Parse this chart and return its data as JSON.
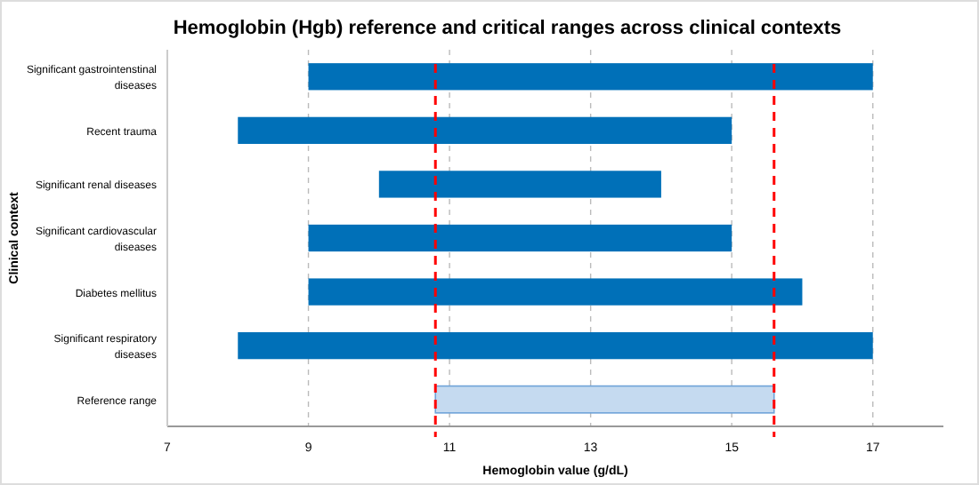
{
  "chart_data": {
    "type": "bar",
    "orientation": "horizontal",
    "title": "Hemoglobin (Hgb) reference and critical ranges across clinical contexts",
    "xlabel": "Hemoglobin value (g/dL)",
    "ylabel": "Clinical context",
    "categories": [
      "Significant gastrointenstinal diseases",
      "Recent trauma",
      "Significant renal diseases",
      "Significant cardiovascular diseases",
      "Diabetes mellitus",
      "Significant respiratory diseases",
      "Reference range"
    ],
    "base": [
      9,
      8,
      10,
      9,
      9,
      8,
      10.8
    ],
    "values": [
      8,
      7,
      4,
      6,
      7,
      9,
      4.8
    ],
    "colors": [
      "#0070b8",
      "#0070b8",
      "#0070b8",
      "#0070b8",
      "#0070b8",
      "#0070b8",
      "#c5daf0"
    ],
    "xlim": [
      7,
      18
    ],
    "xticks": [
      7,
      9,
      11,
      13,
      15,
      17
    ],
    "grid": "x",
    "ref_lines": [
      {
        "axis": "x",
        "value": 10.8,
        "color": "#ff0000",
        "line_style": "dashed"
      },
      {
        "axis": "x",
        "value": 15.6,
        "color": "#ff0000",
        "line_style": "dashed"
      }
    ]
  }
}
